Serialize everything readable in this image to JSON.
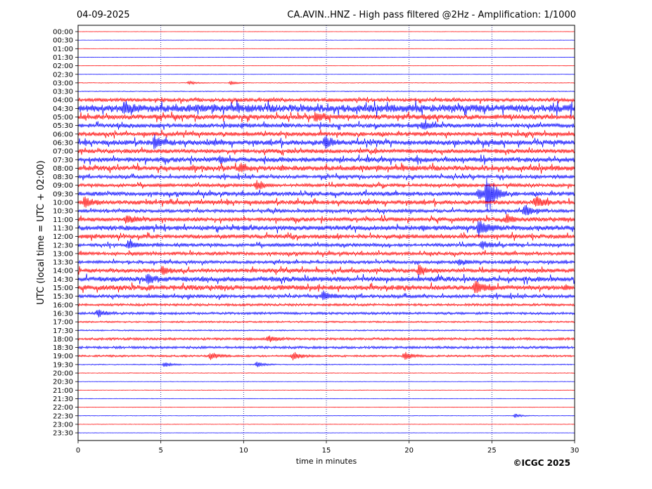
{
  "header": {
    "date": "04-09-2025",
    "title": "CA.AVIN..HNZ - High pass filtered @2Hz - Amplification: 1/1000"
  },
  "footer": {
    "copyright": "©ICGC 2025"
  },
  "colors": {
    "trace_a": "#ff0000",
    "trace_b": "#0000ff",
    "grid": "#000080",
    "axes": "#000000"
  },
  "chart_data": {
    "type": "line",
    "title": "CA.AVIN..HNZ - High pass filtered @2Hz - Amplification: 1/1000",
    "xlabel": "time in minutes",
    "ylabel": "UTC (local time = UTC + 02:00)",
    "xlim": [
      0,
      30
    ],
    "x_ticks": [
      0,
      5,
      10,
      15,
      20,
      25,
      30
    ],
    "x_grid": [
      5,
      10,
      15,
      20,
      25
    ],
    "row_labels": [
      "00:00",
      "00:30",
      "01:00",
      "01:30",
      "02:00",
      "02:30",
      "03:00",
      "03:30",
      "04:00",
      "04:30",
      "05:00",
      "05:30",
      "06:00",
      "06:30",
      "07:00",
      "07:30",
      "08:00",
      "08:30",
      "09:00",
      "09:30",
      "10:00",
      "10:30",
      "11:00",
      "11:30",
      "12:00",
      "12:30",
      "13:00",
      "13:30",
      "14:00",
      "14:30",
      "15:00",
      "15:30",
      "16:00",
      "16:30",
      "17:00",
      "17:30",
      "18:00",
      "18:30",
      "19:00",
      "19:30",
      "20:00",
      "20:30",
      "21:00",
      "21:30",
      "22:00",
      "22:30",
      "23:00",
      "23:30"
    ],
    "row_colors": [
      "trace_a",
      "trace_b",
      "trace_a",
      "trace_b",
      "trace_a",
      "trace_b",
      "trace_a",
      "trace_b",
      "trace_a",
      "trace_b",
      "trace_a",
      "trace_b",
      "trace_a",
      "trace_b",
      "trace_a",
      "trace_b",
      "trace_a",
      "trace_b",
      "trace_a",
      "trace_b",
      "trace_a",
      "trace_b",
      "trace_a",
      "trace_b",
      "trace_a",
      "trace_b",
      "trace_a",
      "trace_b",
      "trace_a",
      "trace_b",
      "trace_a",
      "trace_b",
      "trace_a",
      "trace_b",
      "trace_a",
      "trace_b",
      "trace_a",
      "trace_b",
      "trace_a",
      "trace_b",
      "trace_a",
      "trace_b",
      "trace_a",
      "trace_b",
      "trace_a",
      "trace_b",
      "trace_a",
      "trace_b"
    ],
    "noise_level": [
      0.2,
      0.2,
      0.2,
      0.2,
      0.2,
      0.2,
      0.4,
      0.5,
      2.2,
      4.5,
      3.0,
      2.5,
      2.5,
      3.0,
      2.5,
      3.0,
      3.0,
      2.0,
      2.0,
      2.5,
      2.5,
      2.0,
      2.5,
      3.0,
      2.5,
      2.0,
      2.0,
      1.8,
      2.5,
      3.0,
      3.0,
      2.0,
      1.5,
      1.5,
      1.0,
      0.8,
      1.5,
      1.5,
      1.2,
      0.6,
      0.4,
      0.3,
      0.3,
      0.3,
      0.3,
      0.3,
      0.3,
      0.2
    ],
    "events": [
      {
        "row": 6,
        "t": 6.7,
        "amp": 3
      },
      {
        "row": 6,
        "t": 9.2,
        "amp": 3
      },
      {
        "row": 9,
        "t": 2.7,
        "amp": 6
      },
      {
        "row": 10,
        "t": 14.3,
        "amp": 7
      },
      {
        "row": 11,
        "t": 20.8,
        "amp": 5
      },
      {
        "row": 13,
        "t": 4.6,
        "amp": 7
      },
      {
        "row": 13,
        "t": 14.9,
        "amp": 9
      },
      {
        "row": 15,
        "t": 8.6,
        "amp": 5
      },
      {
        "row": 16,
        "t": 9.8,
        "amp": 5
      },
      {
        "row": 18,
        "t": 10.8,
        "amp": 7
      },
      {
        "row": 19,
        "t": 24.2,
        "amp": 8
      },
      {
        "row": 19,
        "t": 24.7,
        "amp": 32
      },
      {
        "row": 20,
        "t": 0.4,
        "amp": 8
      },
      {
        "row": 20,
        "t": 27.6,
        "amp": 10
      },
      {
        "row": 21,
        "t": 27.0,
        "amp": 8
      },
      {
        "row": 22,
        "t": 2.9,
        "amp": 6
      },
      {
        "row": 22,
        "t": 25.9,
        "amp": 6
      },
      {
        "row": 23,
        "t": 24.2,
        "amp": 12
      },
      {
        "row": 25,
        "t": 3.0,
        "amp": 6
      },
      {
        "row": 25,
        "t": 24.4,
        "amp": 6
      },
      {
        "row": 27,
        "t": 23.0,
        "amp": 5
      },
      {
        "row": 28,
        "t": 5.1,
        "amp": 6
      },
      {
        "row": 28,
        "t": 20.6,
        "amp": 7
      },
      {
        "row": 29,
        "t": 4.2,
        "amp": 7
      },
      {
        "row": 30,
        "t": 24.0,
        "amp": 9
      },
      {
        "row": 31,
        "t": 14.8,
        "amp": 7
      },
      {
        "row": 33,
        "t": 1.2,
        "amp": 6
      },
      {
        "row": 36,
        "t": 11.5,
        "amp": 5
      },
      {
        "row": 38,
        "t": 8.0,
        "amp": 6
      },
      {
        "row": 38,
        "t": 13.0,
        "amp": 6
      },
      {
        "row": 38,
        "t": 19.7,
        "amp": 6
      },
      {
        "row": 39,
        "t": 5.2,
        "amp": 4
      },
      {
        "row": 39,
        "t": 10.8,
        "amp": 4
      },
      {
        "row": 45,
        "t": 26.4,
        "amp": 3
      }
    ],
    "grid": true
  }
}
